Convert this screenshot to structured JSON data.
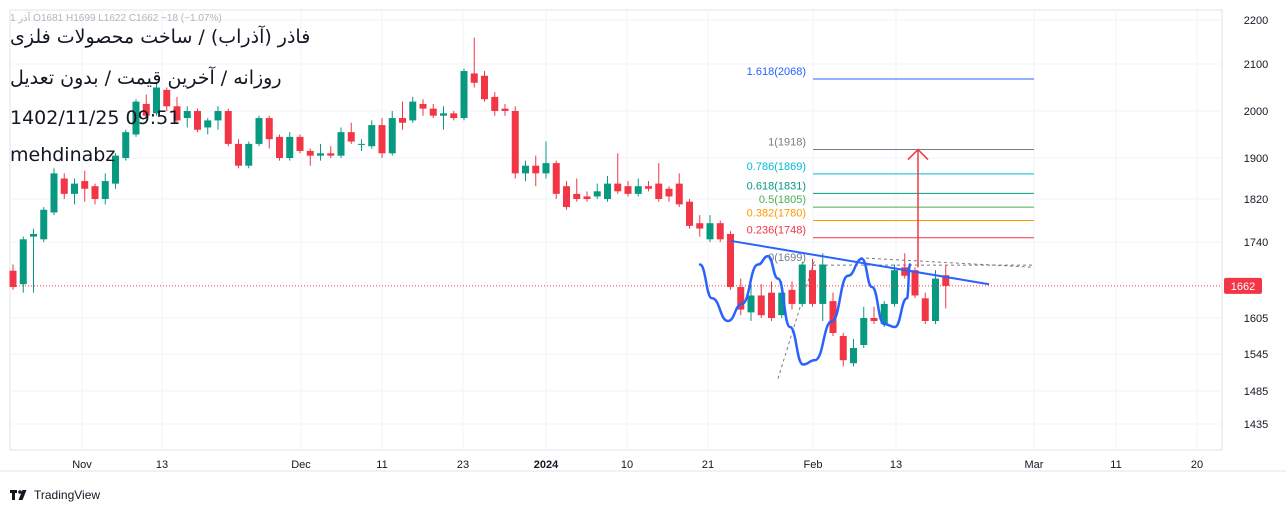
{
  "header": {
    "ohlc_text": "آذر 1  O1681  H1699  L1622  C1662  −18 (−1.07%)",
    "title_line1": "فاذر (آذراب) / ساخت محصولات فلزی",
    "title_line2": "روزانه / آخرین قیمت / بدون تعدیل",
    "timestamp": "1402/11/25 09:51",
    "author": "mehdinabz"
  },
  "footer": {
    "brand": "TradingView"
  },
  "colors": {
    "up": "#089981",
    "down": "#f23645",
    "trendline": "#2962ff",
    "pattern": "#2962ff",
    "last_price": "#f23645",
    "arrow": "#f23645",
    "grid": "#f0f3fa",
    "axis_text": "#131722"
  },
  "chart_data": {
    "type": "candlestick",
    "y_axis": {
      "position": "right",
      "ticks": [
        2200,
        2100,
        2000,
        1900,
        1820,
        1740,
        1605,
        1545,
        1485,
        1435
      ],
      "tick_labels": [
        "2200",
        "2100",
        "2000",
        "1900",
        "1820",
        "1740",
        "1605",
        "1545",
        "1485",
        "1435"
      ]
    },
    "x_axis": {
      "ticks": [
        {
          "label": "Nov",
          "bold": false
        },
        {
          "label": "13",
          "bold": false
        },
        {
          "label": "Dec",
          "bold": false
        },
        {
          "label": "11",
          "bold": false
        },
        {
          "label": "23",
          "bold": false
        },
        {
          "label": "2024",
          "bold": true
        },
        {
          "label": "10",
          "bold": false
        },
        {
          "label": "21",
          "bold": false
        },
        {
          "label": "Feb",
          "bold": false
        },
        {
          "label": "13",
          "bold": false
        },
        {
          "label": "Mar",
          "bold": false
        },
        {
          "label": "11",
          "bold": false
        },
        {
          "label": "20",
          "bold": false
        }
      ]
    },
    "last_price": 1662,
    "last_price_label": "1662",
    "candles": [
      [
        1689,
        1660,
        1700,
        1655
      ],
      [
        1665,
        1745,
        1750,
        1650
      ],
      [
        1750,
        1755,
        1765,
        1650
      ],
      [
        1745,
        1800,
        1805,
        1740
      ],
      [
        1795,
        1870,
        1880,
        1790
      ],
      [
        1860,
        1830,
        1870,
        1820
      ],
      [
        1830,
        1850,
        1860,
        1810
      ],
      [
        1855,
        1840,
        1875,
        1815
      ],
      [
        1845,
        1820,
        1850,
        1810
      ],
      [
        1820,
        1855,
        1870,
        1810
      ],
      [
        1850,
        1905,
        1910,
        1840
      ],
      [
        1900,
        1955,
        1960,
        1895
      ],
      [
        1950,
        2020,
        2025,
        1945
      ],
      [
        2015,
        1990,
        2035,
        1985
      ],
      [
        1995,
        2050,
        2060,
        1990
      ],
      [
        2045,
        2010,
        2050,
        2000
      ],
      [
        2010,
        1980,
        2030,
        1975
      ],
      [
        1985,
        2000,
        2010,
        1965
      ],
      [
        2000,
        1960,
        2005,
        1955
      ],
      [
        1965,
        1980,
        1985,
        1950
      ],
      [
        1980,
        2000,
        2010,
        1960
      ],
      [
        2000,
        1930,
        2005,
        1925
      ],
      [
        1930,
        1885,
        1940,
        1880
      ],
      [
        1885,
        1930,
        1935,
        1880
      ],
      [
        1930,
        1985,
        1990,
        1925
      ],
      [
        1985,
        1940,
        1990,
        1920
      ],
      [
        1945,
        1900,
        1950,
        1895
      ],
      [
        1900,
        1945,
        1955,
        1895
      ],
      [
        1945,
        1915,
        1950,
        1910
      ],
      [
        1915,
        1905,
        1920,
        1885
      ],
      [
        1905,
        1910,
        1930,
        1895
      ],
      [
        1910,
        1905,
        1925,
        1900
      ],
      [
        1905,
        1955,
        1965,
        1900
      ],
      [
        1955,
        1935,
        1975,
        1930
      ],
      [
        1930,
        1930,
        1940,
        1915
      ],
      [
        1925,
        1970,
        1980,
        1920
      ],
      [
        1970,
        1910,
        1985,
        1900
      ],
      [
        1910,
        1985,
        2000,
        1905
      ],
      [
        1985,
        1975,
        2020,
        1960
      ],
      [
        1980,
        2020,
        2030,
        1975
      ],
      [
        2015,
        2005,
        2025,
        1990
      ],
      [
        2005,
        1990,
        2015,
        1985
      ],
      [
        1990,
        1995,
        2010,
        1960
      ],
      [
        1995,
        1985,
        2000,
        1980
      ],
      [
        1985,
        2085,
        2090,
        1980
      ],
      [
        2080,
        2060,
        2160,
        2050
      ],
      [
        2075,
        2025,
        2085,
        2020
      ],
      [
        2030,
        2000,
        2040,
        1990
      ],
      [
        2005,
        2000,
        2015,
        1990
      ],
      [
        2000,
        1870,
        2010,
        1860
      ],
      [
        1870,
        1885,
        1895,
        1855
      ],
      [
        1885,
        1870,
        1905,
        1845
      ],
      [
        1870,
        1890,
        1935,
        1860
      ],
      [
        1890,
        1830,
        1895,
        1820
      ],
      [
        1845,
        1805,
        1855,
        1800
      ],
      [
        1830,
        1820,
        1860,
        1815
      ],
      [
        1825,
        1820,
        1835,
        1815
      ],
      [
        1825,
        1835,
        1850,
        1820
      ],
      [
        1820,
        1850,
        1865,
        1815
      ],
      [
        1850,
        1835,
        1910,
        1830
      ],
      [
        1845,
        1830,
        1855,
        1825
      ],
      [
        1830,
        1845,
        1860,
        1825
      ],
      [
        1845,
        1840,
        1855,
        1835
      ],
      [
        1850,
        1820,
        1890,
        1815
      ],
      [
        1840,
        1825,
        1845,
        1815
      ],
      [
        1850,
        1810,
        1870,
        1805
      ],
      [
        1815,
        1770,
        1820,
        1765
      ],
      [
        1775,
        1765,
        1790,
        1750
      ],
      [
        1745,
        1775,
        1790,
        1740
      ],
      [
        1775,
        1745,
        1780,
        1740
      ],
      [
        1755,
        1660,
        1760,
        1655
      ],
      [
        1660,
        1620,
        1675,
        1610
      ],
      [
        1615,
        1645,
        1665,
        1600
      ],
      [
        1645,
        1610,
        1665,
        1605
      ],
      [
        1650,
        1605,
        1670,
        1600
      ],
      [
        1610,
        1650,
        1670,
        1605
      ],
      [
        1655,
        1630,
        1670,
        1620
      ],
      [
        1630,
        1700,
        1705,
        1625
      ],
      [
        1690,
        1630,
        1710,
        1625
      ],
      [
        1630,
        1700,
        1720,
        1600
      ],
      [
        1635,
        1580,
        1650,
        1575
      ],
      [
        1575,
        1535,
        1580,
        1525
      ],
      [
        1530,
        1555,
        1570,
        1525
      ],
      [
        1560,
        1605,
        1625,
        1555
      ],
      [
        1605,
        1600,
        1625,
        1595
      ],
      [
        1595,
        1630,
        1635,
        1590
      ],
      [
        1630,
        1690,
        1700,
        1625
      ],
      [
        1695,
        1680,
        1720,
        1675
      ],
      [
        1690,
        1645,
        1695,
        1640
      ],
      [
        1640,
        1600,
        1650,
        1595
      ],
      [
        1600,
        1675,
        1690,
        1595
      ],
      [
        1681,
        1662,
        1699,
        1622
      ]
    ],
    "fibonacci": [
      {
        "ratio": "1.618",
        "price": 2068,
        "label": "1.618(2068)",
        "color": "#2962ff"
      },
      {
        "ratio": "1",
        "price": 1918,
        "label": "1(1918)",
        "color": "#787b86"
      },
      {
        "ratio": "0.786",
        "price": 1869,
        "label": "0.786(1869)",
        "color": "#00bcd4"
      },
      {
        "ratio": "0.618",
        "price": 1831,
        "label": "0.618(1831)",
        "color": "#089981"
      },
      {
        "ratio": "0.5",
        "price": 1805,
        "label": "0.5(1805)",
        "color": "#4caf50"
      },
      {
        "ratio": "0.382",
        "price": 1780,
        "label": "0.382(1780)",
        "color": "#ff9800"
      },
      {
        "ratio": "0.236",
        "price": 1748,
        "label": "0.236(1748)",
        "color": "#f23645"
      },
      {
        "ratio": "0",
        "price": 1699,
        "label": "0(1699)",
        "color": "#787b86"
      }
    ]
  }
}
